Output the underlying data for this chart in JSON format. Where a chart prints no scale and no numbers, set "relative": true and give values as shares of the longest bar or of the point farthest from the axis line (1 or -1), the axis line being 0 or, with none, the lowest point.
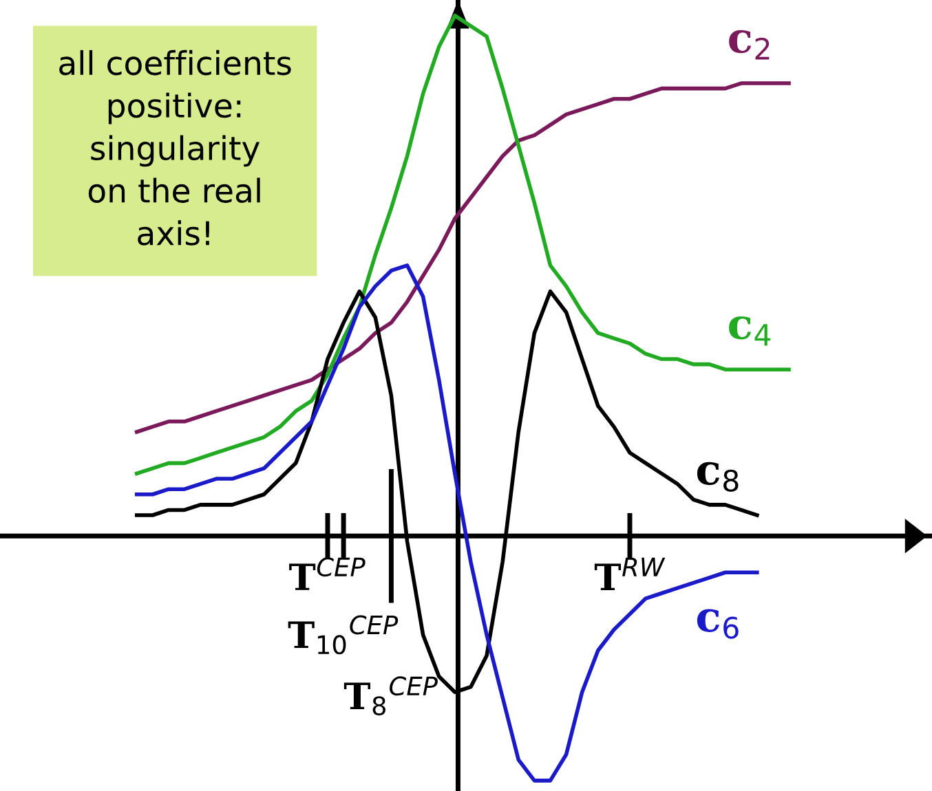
{
  "chart_data": {
    "type": "line",
    "relative": true,
    "categories": [
      null,
      null,
      null,
      null,
      null,
      null,
      null,
      null,
      null,
      null,
      null,
      null,
      null,
      "T$^{CEP}$",
      "T$_{10}$$^{CEP}$",
      null,
      null,
      "T$_{8}$$^{CEP}$",
      null,
      null,
      null,
      null,
      null,
      null,
      null,
      null,
      null,
      null,
      null,
      null,
      null,
      null,
      "T$^{RW}$",
      null,
      null,
      null,
      null,
      null,
      null,
      null,
      null,
      null,
      null,
      null,
      null,
      null,
      null,
      null,
      null,
      null,
      null,
      null
    ],
    "annotations": [
      "all coefficients\npositive:\nsingularity\non the real\naxis!"
    ],
    "series": [
      {
        "name": "c$_{2}$",
        "color": "#7b1a5a",
        "values": [
          null,
          0.2,
          0.21,
          0.22,
          0.22,
          0.23,
          0.24,
          0.25,
          0.26,
          0.27,
          0.28,
          0.29,
          0.3,
          0.32,
          0.34,
          0.36,
          0.39,
          0.41,
          0.45,
          0.5,
          0.55,
          0.61,
          0.65,
          0.69,
          0.73,
          0.76,
          0.77,
          0.79,
          0.81,
          0.82,
          0.83,
          0.84,
          0.84,
          0.85,
          0.86,
          0.86,
          0.86,
          0.86,
          0.86,
          0.87,
          0.87,
          0.87,
          0.87,
          null,
          null,
          null,
          null,
          null,
          null,
          null,
          null,
          null
        ]
      },
      {
        "name": "c$_{4}$",
        "color": "#22aa22",
        "values": [
          null,
          0.12,
          0.13,
          0.14,
          0.14,
          0.15,
          0.16,
          0.17,
          0.18,
          0.19,
          0.21,
          0.24,
          0.26,
          0.31,
          0.38,
          0.44,
          0.54,
          0.63,
          0.73,
          0.85,
          0.94,
          1.0,
          0.98,
          0.96,
          0.86,
          0.75,
          0.64,
          0.52,
          0.48,
          0.43,
          0.39,
          0.38,
          0.37,
          0.35,
          0.34,
          0.34,
          0.33,
          0.33,
          0.32,
          0.32,
          0.32,
          0.32,
          0.32,
          null,
          null,
          null,
          null,
          null,
          null,
          null,
          null,
          null
        ]
      },
      {
        "name": "c$_{8}$",
        "color": "#000000",
        "values": [
          null,
          0.04,
          0.04,
          0.05,
          0.05,
          0.06,
          0.06,
          0.06,
          0.07,
          0.08,
          0.11,
          0.14,
          0.22,
          0.34,
          0.41,
          0.47,
          0.42,
          0.27,
          -0.01,
          -0.19,
          -0.27,
          -0.3,
          -0.29,
          -0.23,
          -0.05,
          0.2,
          0.39,
          0.47,
          0.43,
          0.34,
          0.25,
          0.21,
          0.16,
          0.14,
          0.12,
          0.1,
          0.07,
          0.06,
          0.06,
          0.05,
          0.04,
          null,
          null,
          null,
          null,
          null,
          null,
          null,
          null,
          null,
          null,
          null
        ]
      },
      {
        "name": "c$_{6}$",
        "color": "#1a1ac8",
        "values": [
          null,
          0.08,
          0.08,
          0.09,
          0.09,
          0.1,
          0.11,
          0.11,
          0.12,
          0.13,
          0.16,
          0.19,
          0.22,
          0.29,
          0.36,
          0.44,
          0.48,
          0.51,
          0.52,
          0.46,
          0.3,
          0.12,
          -0.05,
          -0.19,
          -0.31,
          -0.43,
          -0.47,
          -0.47,
          -0.42,
          -0.3,
          -0.22,
          -0.18,
          -0.15,
          -0.12,
          -0.11,
          -0.1,
          -0.09,
          -0.08,
          -0.07,
          -0.07,
          -0.07,
          null,
          null,
          null,
          null,
          null,
          null,
          null,
          null,
          null,
          null,
          null
        ]
      }
    ]
  }
}
